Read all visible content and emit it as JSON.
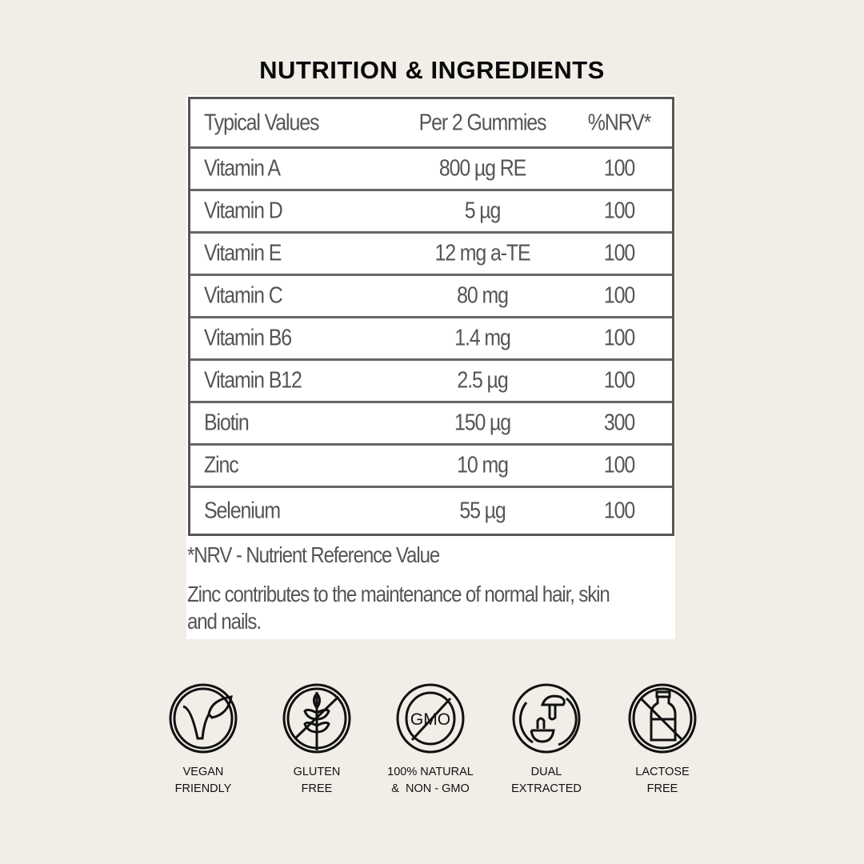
{
  "title": "NUTRITION & INGREDIENTS",
  "table": {
    "headers": [
      "Typical Values",
      "Per 2 Gummies",
      "%NRV*"
    ],
    "rows": [
      [
        "Vitamin A",
        "800 µg RE",
        "100"
      ],
      [
        "Vitamin D",
        "5 µg",
        "100"
      ],
      [
        "Vitamin E",
        "12 mg a-TE",
        "100"
      ],
      [
        "Vitamin C",
        "80 mg",
        "100"
      ],
      [
        "Vitamin B6",
        "1.4 mg",
        "100"
      ],
      [
        "Vitamin B12",
        "2.5 µg",
        "100"
      ],
      [
        "Biotin",
        "150 µg",
        "300"
      ],
      [
        "Zinc",
        "10 mg",
        "100"
      ],
      [
        "Selenium",
        "55 µg",
        "100"
      ]
    ]
  },
  "footnote": "*NRV - Nutrient Reference Value",
  "claim_line1": "Zinc contributes to the maintenance of normal hair, skin",
  "claim_line2": "and nails.",
  "badges": [
    {
      "icon": "vegan-icon",
      "line1": "VEGAN",
      "line2": "FRIENDLY"
    },
    {
      "icon": "gluten-free-icon",
      "line1": "GLUTEN",
      "line2": "FREE"
    },
    {
      "icon": "non-gmo-icon",
      "line1": "100% NATURAL",
      "line2": "&  NON - GMO"
    },
    {
      "icon": "dual-extracted-icon",
      "line1": "DUAL",
      "line2": "EXTRACTED"
    },
    {
      "icon": "lactose-free-icon",
      "line1": "LACTOSE",
      "line2": "FREE"
    }
  ],
  "gmo_text": "GMO"
}
